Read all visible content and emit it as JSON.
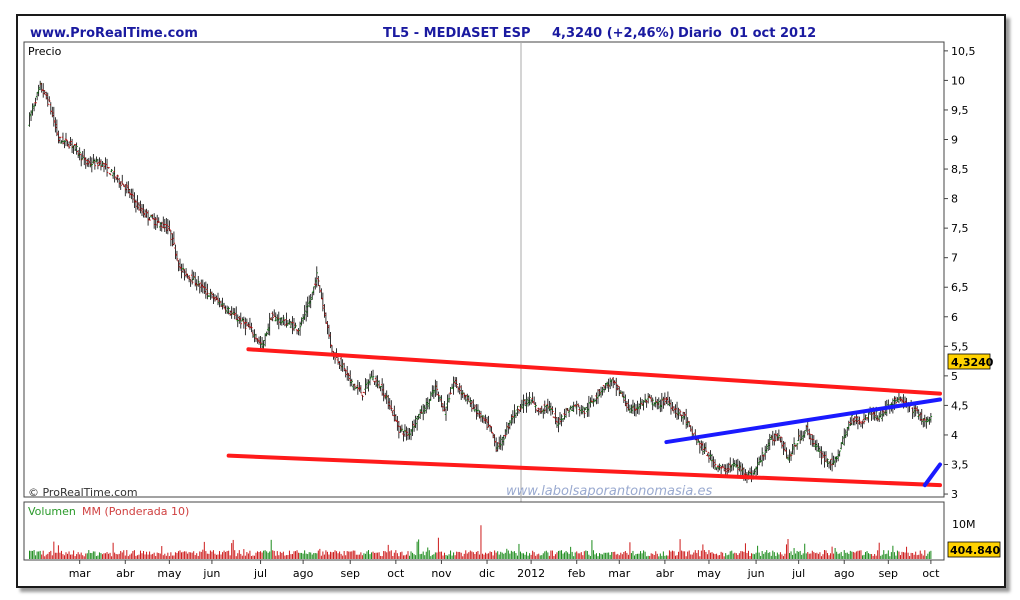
{
  "header": {
    "site": "www.ProRealTime.com",
    "instrument": "TL5 - MEDIASET ESP",
    "quote": "4,3240 (+2,46%)",
    "period": "Diario",
    "date": "01 oct 2012"
  },
  "price_panel": {
    "label": "Precio",
    "copyright": "© ProRealTime.com",
    "watermark": "www.labolsaporantonomasia.es",
    "last_price_label": "4,3240"
  },
  "volume_panel": {
    "label_volumen": "Volumen",
    "label_mm": "MM (Ponderada 10)",
    "axis_label": "10M",
    "last_volume_label": "404.840"
  },
  "colors": {
    "header_text": "#1a1aa0",
    "resistance": "#ff1a1a",
    "channel": "#1a1aff",
    "candle_up": "#1a8a1a",
    "candle_down": "#cc1a1a",
    "volume_label": "#2a9a2a",
    "mm_label": "#d04040",
    "price_box": "#ffd200"
  },
  "chart_data": [
    {
      "type": "candlestick",
      "panel": "price",
      "x_start": "2012-02-20",
      "x_end": "2012-10-01",
      "x_ticks": [
        "mar",
        "abr",
        "may",
        "jun",
        "jul",
        "ago",
        "sep",
        "oct",
        "nov",
        "dic",
        "2012",
        "feb",
        "mar",
        "abr",
        "may",
        "jun",
        "jul",
        "ago",
        "sep",
        "oct"
      ],
      "y_ticks": [
        "3",
        "3,5",
        "4",
        "4,5",
        "5",
        "5,5",
        "6",
        "6,5",
        "7",
        "7,5",
        "8",
        "8,5",
        "9",
        "9,5",
        "10",
        "10,5"
      ],
      "ylim": [
        2.95,
        10.65
      ],
      "last_close": 4.324,
      "close_points": [
        [
          0,
          9.3
        ],
        [
          8,
          9.9
        ],
        [
          14,
          9.6
        ],
        [
          20,
          9.0
        ],
        [
          30,
          8.9
        ],
        [
          38,
          8.6
        ],
        [
          48,
          8.6
        ],
        [
          56,
          8.4
        ],
        [
          64,
          8.2
        ],
        [
          74,
          7.8
        ],
        [
          84,
          7.6
        ],
        [
          92,
          7.5
        ],
        [
          96,
          7.2
        ],
        [
          100,
          6.8
        ],
        [
          110,
          6.6
        ],
        [
          118,
          6.4
        ],
        [
          128,
          6.2
        ],
        [
          136,
          6.0
        ],
        [
          146,
          5.8
        ],
        [
          154,
          5.5
        ],
        [
          160,
          6.0
        ],
        [
          170,
          5.9
        ],
        [
          178,
          5.8
        ],
        [
          186,
          6.3
        ],
        [
          190,
          6.7
        ],
        [
          194,
          6.2
        ],
        [
          200,
          5.4
        ],
        [
          206,
          5.2
        ],
        [
          212,
          4.9
        ],
        [
          220,
          4.7
        ],
        [
          226,
          5.0
        ],
        [
          232,
          4.8
        ],
        [
          238,
          4.5
        ],
        [
          244,
          4.1
        ],
        [
          250,
          4.0
        ],
        [
          256,
          4.3
        ],
        [
          262,
          4.5
        ],
        [
          268,
          4.8
        ],
        [
          274,
          4.4
        ],
        [
          280,
          4.9
        ],
        [
          286,
          4.7
        ],
        [
          292,
          4.5
        ],
        [
          298,
          4.3
        ],
        [
          304,
          4.1
        ],
        [
          308,
          3.8
        ],
        [
          312,
          3.9
        ],
        [
          318,
          4.3
        ],
        [
          324,
          4.5
        ],
        [
          330,
          4.6
        ],
        [
          336,
          4.4
        ],
        [
          342,
          4.5
        ],
        [
          348,
          4.2
        ],
        [
          354,
          4.4
        ],
        [
          360,
          4.5
        ],
        [
          366,
          4.4
        ],
        [
          372,
          4.6
        ],
        [
          378,
          4.8
        ],
        [
          384,
          4.9
        ],
        [
          390,
          4.7
        ],
        [
          396,
          4.4
        ],
        [
          402,
          4.5
        ],
        [
          408,
          4.6
        ],
        [
          414,
          4.5
        ],
        [
          420,
          4.6
        ],
        [
          426,
          4.4
        ],
        [
          432,
          4.3
        ],
        [
          436,
          4.05
        ],
        [
          440,
          3.9
        ],
        [
          446,
          3.7
        ],
        [
          452,
          3.5
        ],
        [
          458,
          3.4
        ],
        [
          464,
          3.5
        ],
        [
          470,
          3.4
        ],
        [
          476,
          3.3
        ],
        [
          482,
          3.6
        ],
        [
          488,
          3.9
        ],
        [
          494,
          4.0
        ],
        [
          500,
          3.6
        ],
        [
          506,
          3.9
        ],
        [
          512,
          4.1
        ],
        [
          518,
          3.8
        ],
        [
          524,
          3.6
        ],
        [
          530,
          3.5
        ],
        [
          536,
          3.9
        ],
        [
          542,
          4.3
        ],
        [
          548,
          4.2
        ],
        [
          554,
          4.4
        ],
        [
          560,
          4.3
        ],
        [
          566,
          4.5
        ],
        [
          572,
          4.6
        ],
        [
          578,
          4.5
        ],
        [
          584,
          4.4
        ],
        [
          590,
          4.2
        ],
        [
          594,
          4.324
        ]
      ]
    },
    {
      "type": "line",
      "panel": "price",
      "name": "",
      "trendlines": [
        {
          "color_key": "resistance",
          "from": [
            145,
            5.45
          ],
          "to": [
            600,
            4.7
          ]
        },
        {
          "color_key": "resistance",
          "from": [
            132,
            3.65
          ],
          "to": [
            600,
            3.15
          ]
        },
        {
          "color_key": "channel",
          "from": [
            420,
            3.88
          ],
          "to": [
            600,
            4.6
          ]
        },
        {
          "color_key": "channel",
          "from": [
            590,
            3.15
          ],
          "to": [
            600,
            3.5
          ]
        }
      ]
    },
    {
      "type": "bar",
      "panel": "volume",
      "ylabel": "",
      "ylim": [
        0,
        10
      ],
      "last_volume": 404840
    }
  ]
}
